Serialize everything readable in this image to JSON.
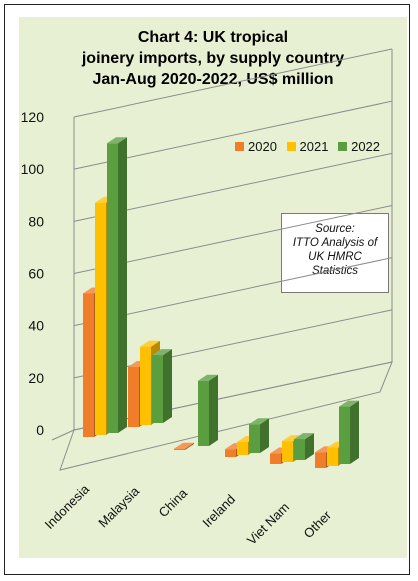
{
  "chart_data": {
    "type": "bar",
    "title_lines": [
      "Chart 4: UK tropical",
      "joinery imports, by supply country",
      "Jan-Aug 2020-2022, US$ million"
    ],
    "categories": [
      "Indonesia",
      "Malaysia",
      "China",
      "Ireland",
      "Viet Nam",
      "Other"
    ],
    "series": [
      {
        "name": "2020",
        "color": "#f07d2a",
        "values": [
          55,
          23,
          0.5,
          3,
          4,
          6
        ]
      },
      {
        "name": "2021",
        "color": "#ffc000",
        "values": [
          89,
          30,
          0,
          5,
          8,
          7
        ]
      },
      {
        "name": "2022",
        "color": "#5a9e3f",
        "values": [
          111,
          26,
          25,
          11,
          8,
          22
        ]
      }
    ],
    "y_ticks": [
      "0",
      "20",
      "40",
      "60",
      "80",
      "100",
      "120"
    ],
    "ylim": [
      0,
      120
    ],
    "grid": true,
    "legend_position": "top-right",
    "three_d": true,
    "annotation": [
      "Source:",
      "ITTO Analysis of",
      "UK HMRC",
      "Statistics"
    ]
  }
}
